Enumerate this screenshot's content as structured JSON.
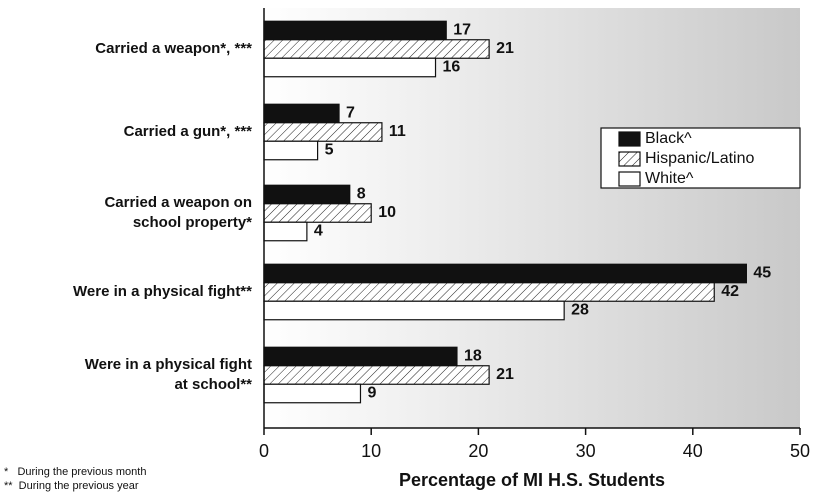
{
  "chart_data": {
    "type": "hbar",
    "x_label": "Percentage of MI H.S. Students",
    "categories": [
      [
        "Carried a weapon*, ***"
      ],
      [
        "Carried a gun*, ***"
      ],
      [
        "Carried a weapon on",
        "school property*"
      ],
      [
        "Were in a physical fight**"
      ],
      [
        "Were in a physical fight",
        "at school**"
      ]
    ],
    "series": [
      {
        "name": "Black^",
        "color": "#111111",
        "pattern": "solid",
        "values": [
          17,
          7,
          8,
          45,
          18
        ]
      },
      {
        "name": "Hispanic/Latino",
        "color": "#ffffff",
        "pattern": "hatch",
        "values": [
          21,
          11,
          10,
          42,
          21
        ]
      },
      {
        "name": "White^",
        "color": "#ffffff",
        "pattern": "solid",
        "values": [
          16,
          5,
          4,
          28,
          9
        ]
      }
    ],
    "xlim": [
      0,
      50
    ],
    "xticks": [
      0,
      10,
      20,
      30,
      40,
      50
    ],
    "legend": "right",
    "footnotes": [
      "*   During the previous month",
      "**  During the previous year"
    ]
  }
}
